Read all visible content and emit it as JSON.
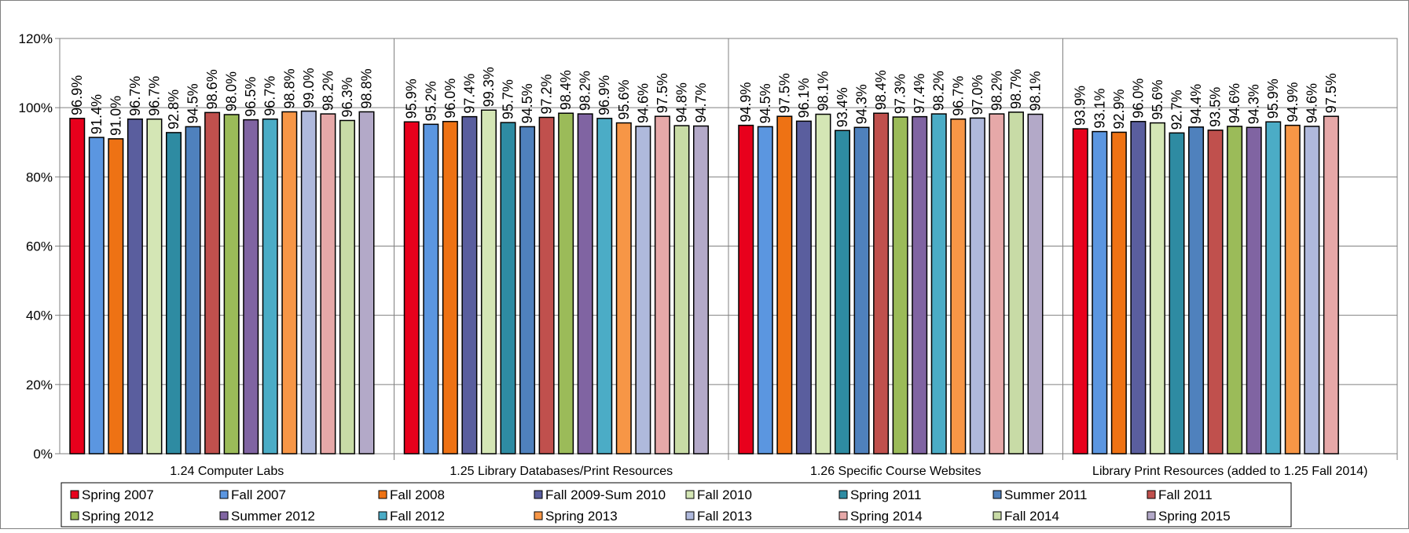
{
  "chart_data": {
    "type": "bar",
    "title": "",
    "xlabel": "",
    "ylabel": "",
    "ylim": [
      0,
      1.2
    ],
    "yticks": [
      "0%",
      "20%",
      "40%",
      "60%",
      "80%",
      "100%",
      "120%"
    ],
    "grid": "horizontal",
    "legend_position": "bottom",
    "categories": [
      "1.24 Computer Labs",
      "1.25 Library Databases/Print Resources",
      "1.26 Specific Course Websites",
      "Library Print Resources (added to 1.25 Fall 2014)"
    ],
    "series": [
      {
        "name": "Spring 2007",
        "color": "#E8001C",
        "values": [
          0.969,
          0.959,
          0.949,
          0.939
        ],
        "labels": [
          "96.9%",
          "95.9%",
          "94.9%",
          "93.9%"
        ]
      },
      {
        "name": "Fall 2007",
        "color": "#5B96E0",
        "values": [
          0.914,
          0.952,
          0.945,
          0.931
        ],
        "labels": [
          "91.4%",
          "95.2%",
          "94.5%",
          "93.1%"
        ]
      },
      {
        "name": "Fall 2008",
        "color": "#EE7214",
        "values": [
          0.91,
          0.96,
          0.975,
          0.929
        ],
        "labels": [
          "91.0%",
          "96.0%",
          "97.5%",
          "92.9%"
        ]
      },
      {
        "name": "Fall 2009-Sum 2010",
        "color": "#5A5E9E",
        "values": [
          0.967,
          0.974,
          0.961,
          0.96
        ],
        "labels": [
          "96.7%",
          "97.4%",
          "96.1%",
          "96.0%"
        ]
      },
      {
        "name": "Fall 2010",
        "color": "#D4E6B5",
        "values": [
          0.967,
          0.993,
          0.981,
          0.956
        ],
        "labels": [
          "96.7%",
          "99.3%",
          "98.1%",
          "95.6%"
        ]
      },
      {
        "name": "Spring 2011",
        "color": "#2E8BA2",
        "values": [
          0.928,
          0.957,
          0.934,
          0.927
        ],
        "labels": [
          "92.8%",
          "95.7%",
          "93.4%",
          "92.7%"
        ]
      },
      {
        "name": "Summer 2011",
        "color": "#4F81BD",
        "values": [
          0.945,
          0.945,
          0.943,
          0.944
        ],
        "labels": [
          "94.5%",
          "94.5%",
          "94.3%",
          "94.4%"
        ]
      },
      {
        "name": "Fall 2011",
        "color": "#C0504D",
        "values": [
          0.986,
          0.972,
          0.984,
          0.935
        ],
        "labels": [
          "98.6%",
          "97.2%",
          "98.4%",
          "93.5%"
        ]
      },
      {
        "name": "Spring 2012",
        "color": "#9BBB59",
        "values": [
          0.98,
          0.984,
          0.973,
          0.946
        ],
        "labels": [
          "98.0%",
          "98.4%",
          "97.3%",
          "94.6%"
        ]
      },
      {
        "name": "Summer 2012",
        "color": "#8064A2",
        "values": [
          0.965,
          0.982,
          0.974,
          0.943
        ],
        "labels": [
          "96.5%",
          "98.2%",
          "97.4%",
          "94.3%"
        ]
      },
      {
        "name": "Fall 2012",
        "color": "#4BACC6",
        "values": [
          0.967,
          0.969,
          0.982,
          0.959
        ],
        "labels": [
          "96.7%",
          "96.9%",
          "98.2%",
          "95.9%"
        ]
      },
      {
        "name": "Spring 2013",
        "color": "#F79646",
        "values": [
          0.988,
          0.956,
          0.967,
          0.949
        ],
        "labels": [
          "98.8%",
          "95.6%",
          "96.7%",
          "94.9%"
        ]
      },
      {
        "name": "Fall 2013",
        "color": "#AFB9DC",
        "values": [
          0.99,
          0.946,
          0.97,
          0.946
        ],
        "labels": [
          "99.0%",
          "94.6%",
          "97.0%",
          "94.6%"
        ]
      },
      {
        "name": "Spring 2014",
        "color": "#E6A8A8",
        "values": [
          0.982,
          0.975,
          0.982,
          0.975
        ],
        "labels": [
          "98.2%",
          "97.5%",
          "98.2%",
          "97.5%"
        ]
      },
      {
        "name": "Fall 2014",
        "color": "#C8DBA6",
        "values": [
          0.963,
          0.948,
          0.987,
          null
        ],
        "labels": [
          "96.3%",
          "94.8%",
          "98.7%",
          ""
        ]
      },
      {
        "name": "Spring 2015",
        "color": "#B3A9C8",
        "values": [
          0.988,
          0.947,
          0.981,
          null
        ],
        "labels": [
          "98.8%",
          "94.7%",
          "98.1%",
          ""
        ]
      }
    ]
  }
}
